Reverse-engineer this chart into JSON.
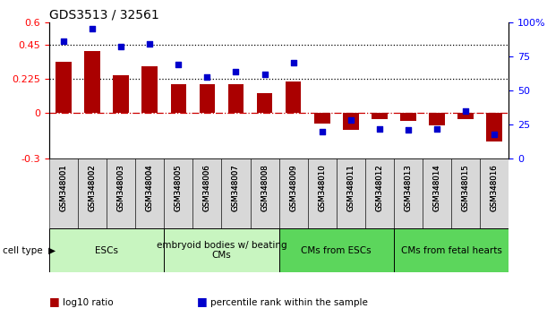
{
  "title": "GDS3513 / 32561",
  "samples": [
    "GSM348001",
    "GSM348002",
    "GSM348003",
    "GSM348004",
    "GSM348005",
    "GSM348006",
    "GSM348007",
    "GSM348008",
    "GSM348009",
    "GSM348010",
    "GSM348011",
    "GSM348012",
    "GSM348013",
    "GSM348014",
    "GSM348015",
    "GSM348016"
  ],
  "log10_ratio": [
    0.34,
    0.41,
    0.25,
    0.31,
    0.19,
    0.19,
    0.19,
    0.13,
    0.21,
    -0.07,
    -0.11,
    -0.04,
    -0.05,
    -0.08,
    -0.04,
    -0.19
  ],
  "percentile_rank": [
    86,
    95,
    82,
    84,
    69,
    60,
    64,
    62,
    70,
    20,
    28,
    22,
    21,
    22,
    35,
    18
  ],
  "cell_type_groups": [
    {
      "label": "ESCs",
      "start": 0,
      "end": 4,
      "color": "#c8f5c0"
    },
    {
      "label": "embryoid bodies w/ beating\nCMs",
      "start": 4,
      "end": 8,
      "color": "#c8f5c0"
    },
    {
      "label": "CMs from ESCs",
      "start": 8,
      "end": 12,
      "color": "#5cd65c"
    },
    {
      "label": "CMs from fetal hearts",
      "start": 12,
      "end": 16,
      "color": "#5cd65c"
    }
  ],
  "bar_color": "#AA0000",
  "dot_color": "#0000CC",
  "ylim_left": [
    -0.3,
    0.6
  ],
  "ylim_right": [
    0,
    100
  ],
  "yticks_left": [
    -0.3,
    0.0,
    0.225,
    0.45,
    0.6
  ],
  "yticks_left_labels": [
    "-0.3",
    "0",
    "0.225",
    "0.45",
    "0.6"
  ],
  "yticks_right": [
    0,
    25,
    50,
    75,
    100
  ],
  "yticks_right_labels": [
    "0",
    "25",
    "50",
    "75",
    "100%"
  ],
  "hline_dotted": [
    0.225,
    0.45
  ],
  "hline_zero_color": "#CC0000",
  "background_color": "#ffffff",
  "legend_items": [
    {
      "label": "log10 ratio",
      "color": "#AA0000"
    },
    {
      "label": "percentile rank within the sample",
      "color": "#0000CC"
    }
  ]
}
